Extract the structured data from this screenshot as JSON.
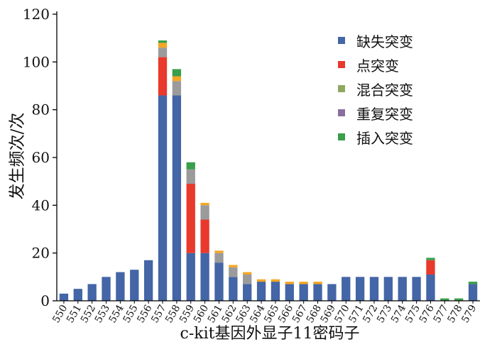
{
  "chart_data": {
    "type": "bar",
    "stacked": true,
    "xlabel": "c-kit基因外显子11密码子",
    "ylabel": "发生频次/次",
    "ylim": [
      0,
      120
    ],
    "yticks": [
      0,
      20,
      40,
      60,
      80,
      100,
      120
    ],
    "grid": false,
    "legend_position": "top-right",
    "categories": [
      "550",
      "551",
      "552",
      "553",
      "554",
      "555",
      "556",
      "557",
      "558",
      "559",
      "560",
      "561",
      "562",
      "563",
      "564",
      "565",
      "566",
      "567",
      "568",
      "569",
      "570",
      "571",
      "572",
      "573",
      "574",
      "575",
      "576",
      "577",
      "578",
      "579"
    ],
    "series": [
      {
        "name": "缺失突变",
        "color": "#4465a6",
        "values": [
          3,
          5,
          7,
          10,
          12,
          13,
          17,
          86,
          86,
          20,
          20,
          16,
          10,
          7,
          8,
          8,
          7,
          7,
          7,
          7,
          10,
          10,
          10,
          10,
          10,
          10,
          11,
          0,
          0,
          7
        ]
      },
      {
        "name": "点突变",
        "color": "#e8392c",
        "values": [
          0,
          0,
          0,
          0,
          0,
          0,
          0,
          16,
          0,
          29,
          14,
          0,
          0,
          0,
          0,
          0,
          0,
          0,
          0,
          0,
          0,
          0,
          0,
          0,
          0,
          0,
          6,
          0,
          0,
          0
        ]
      },
      {
        "name": "混合突变",
        "color": "#8fa860",
        "values": [
          0,
          0,
          0,
          0,
          0,
          0,
          0,
          0,
          0,
          0,
          0,
          0,
          0,
          0,
          0,
          0,
          0,
          0,
          0,
          0,
          0,
          0,
          0,
          0,
          0,
          0,
          0,
          0,
          0,
          0
        ]
      },
      {
        "name": "重复突变",
        "color": "#8a6f9e",
        "values": [
          0,
          0,
          0,
          0,
          0,
          0,
          0,
          0,
          0,
          0,
          0,
          0,
          0,
          0,
          0,
          0,
          0,
          0,
          0,
          0,
          0,
          0,
          0,
          0,
          0,
          0,
          0,
          0,
          0,
          0
        ]
      },
      {
        "name": "插入突变",
        "color": "#3a9e4a",
        "values": [
          0,
          0,
          0,
          0,
          0,
          0,
          0,
          1,
          3,
          3,
          0,
          0,
          0,
          0,
          0,
          0,
          0,
          0,
          0,
          0,
          0,
          0,
          0,
          0,
          0,
          0,
          1,
          1,
          1,
          1
        ]
      }
    ],
    "extra_segments": [
      {
        "color": "#9b9b9b",
        "values": [
          0,
          0,
          0,
          0,
          0,
          0,
          0,
          4,
          6,
          6,
          6,
          4,
          4,
          4,
          0,
          0,
          0,
          0,
          0,
          0,
          0,
          0,
          0,
          0,
          0,
          0,
          0,
          0,
          0,
          0
        ]
      },
      {
        "color": "#f5a623",
        "values": [
          0,
          0,
          0,
          0,
          0,
          0,
          0,
          2,
          2,
          0,
          1,
          1,
          1,
          1,
          1,
          1,
          1,
          1,
          1,
          0,
          0,
          0,
          0,
          0,
          0,
          0,
          0,
          0,
          0,
          0
        ]
      }
    ]
  }
}
